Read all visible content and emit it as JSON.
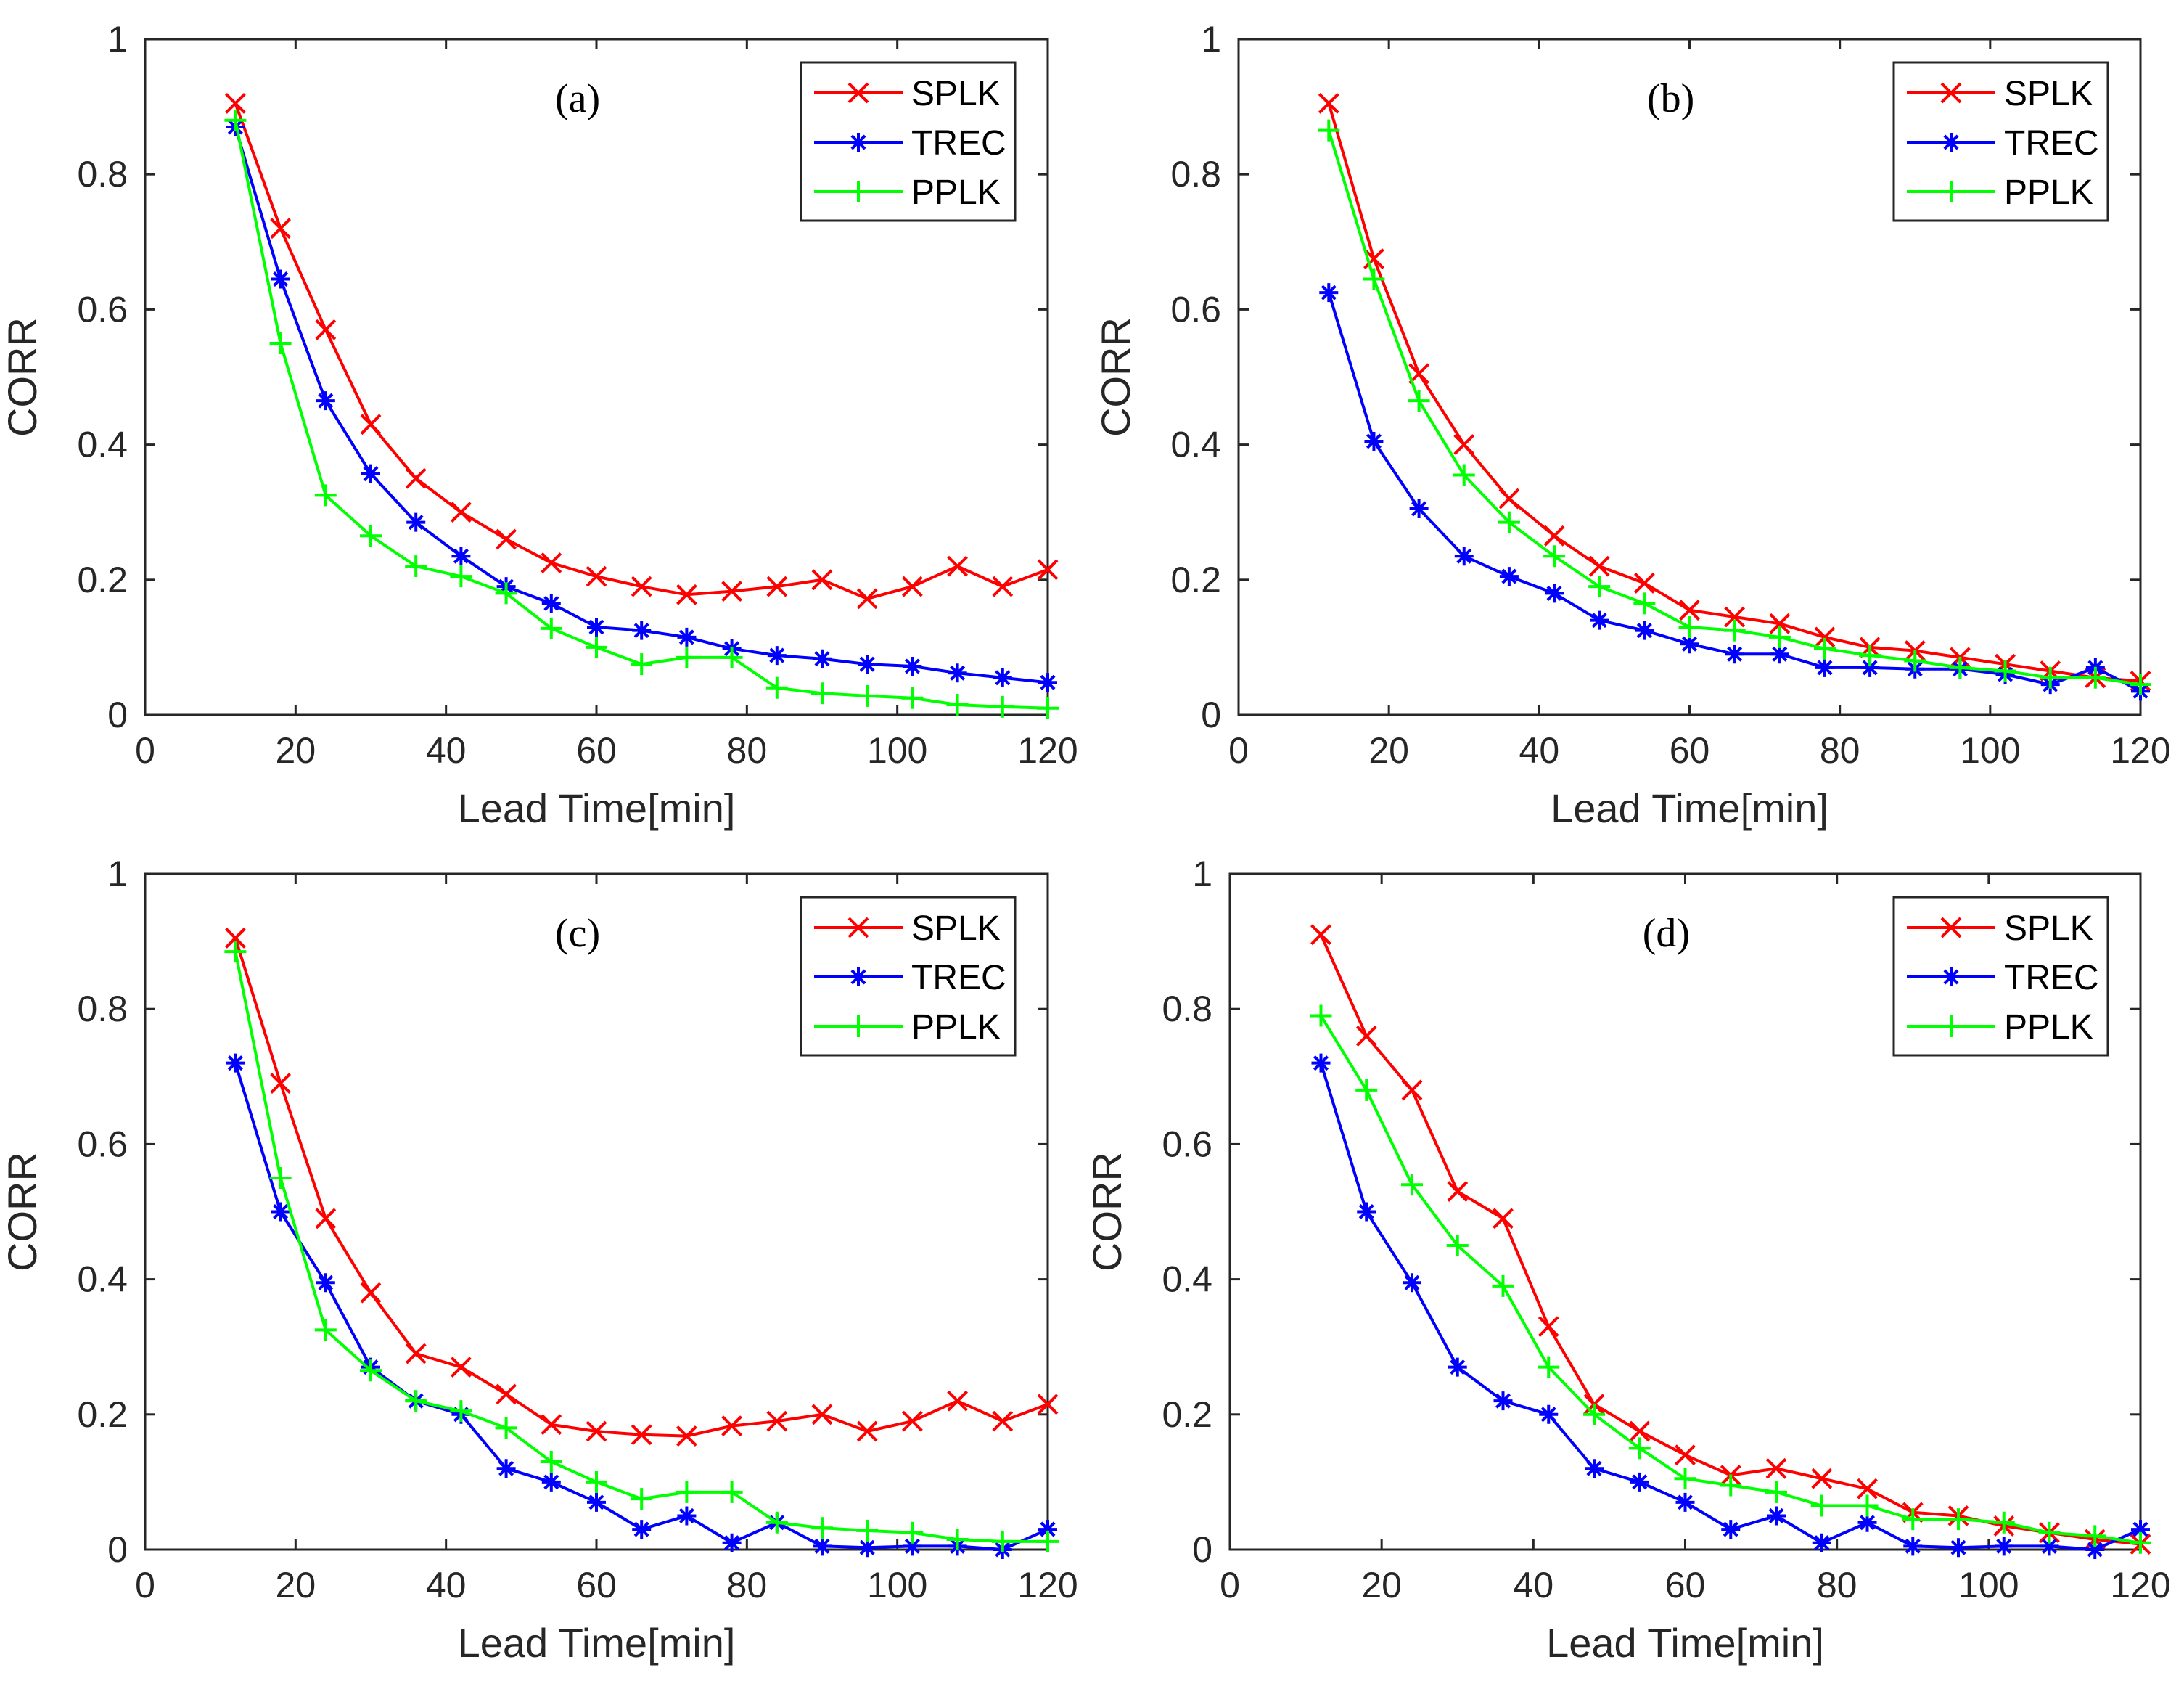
{
  "chart_data": [
    {
      "type": "line",
      "panel_label": "(a)",
      "xlabel": "Lead Time[min]",
      "ylabel": "CORR",
      "xlim": [
        0,
        120
      ],
      "ylim": [
        0,
        1
      ],
      "xticks": [
        "0",
        "20",
        "40",
        "60",
        "80",
        "100",
        "120"
      ],
      "yticks": [
        "0",
        "0.2",
        "0.4",
        "0.6",
        "0.8",
        "1"
      ],
      "legend_position": "top-right",
      "x": [
        12,
        18,
        24,
        30,
        36,
        42,
        48,
        54,
        60,
        66,
        72,
        78,
        84,
        90,
        96,
        102,
        108,
        114,
        120
      ],
      "series": [
        {
          "name": "SPLK",
          "color": "#ff0000",
          "marker": "x",
          "values": [
            0.905,
            0.72,
            0.57,
            0.43,
            0.35,
            0.3,
            0.26,
            0.225,
            0.205,
            0.19,
            0.178,
            0.183,
            0.19,
            0.2,
            0.172,
            0.19,
            0.22,
            0.19,
            0.215
          ]
        },
        {
          "name": "TREC",
          "color": "#0000ff",
          "marker": "*",
          "values": [
            0.87,
            0.645,
            0.465,
            0.357,
            0.285,
            0.235,
            0.19,
            0.165,
            0.13,
            0.125,
            0.115,
            0.098,
            0.088,
            0.083,
            0.075,
            0.072,
            0.062,
            0.055,
            0.048
          ]
        },
        {
          "name": "PPLK",
          "color": "#00ff00",
          "marker": "+",
          "values": [
            0.88,
            0.55,
            0.325,
            0.265,
            0.22,
            0.205,
            0.18,
            0.128,
            0.1,
            0.075,
            0.085,
            0.085,
            0.04,
            0.032,
            0.028,
            0.025,
            0.015,
            0.012,
            0.01
          ]
        }
      ]
    },
    {
      "type": "line",
      "panel_label": "(b)",
      "xlabel": "Lead Time[min]",
      "ylabel": "CORR",
      "xlim": [
        0,
        120
      ],
      "ylim": [
        0,
        1
      ],
      "xticks": [
        "0",
        "20",
        "40",
        "60",
        "80",
        "100",
        "120"
      ],
      "yticks": [
        "0",
        "0.2",
        "0.4",
        "0.6",
        "0.8",
        "1"
      ],
      "legend_position": "top-right",
      "x": [
        12,
        18,
        24,
        30,
        36,
        42,
        48,
        54,
        60,
        66,
        72,
        78,
        84,
        90,
        96,
        102,
        108,
        114,
        120
      ],
      "series": [
        {
          "name": "SPLK",
          "color": "#ff0000",
          "marker": "x",
          "values": [
            0.905,
            0.675,
            0.505,
            0.4,
            0.32,
            0.265,
            0.22,
            0.195,
            0.155,
            0.145,
            0.135,
            0.115,
            0.1,
            0.095,
            0.085,
            0.075,
            0.065,
            0.055,
            0.05
          ]
        },
        {
          "name": "TREC",
          "color": "#0000ff",
          "marker": "*",
          "values": [
            0.625,
            0.405,
            0.305,
            0.235,
            0.205,
            0.18,
            0.14,
            0.125,
            0.105,
            0.09,
            0.09,
            0.07,
            0.07,
            0.068,
            0.068,
            0.06,
            0.045,
            0.07,
            0.035
          ]
        },
        {
          "name": "PPLK",
          "color": "#00ff00",
          "marker": "+",
          "values": [
            0.865,
            0.645,
            0.465,
            0.355,
            0.285,
            0.235,
            0.19,
            0.165,
            0.13,
            0.125,
            0.115,
            0.098,
            0.088,
            0.08,
            0.07,
            0.065,
            0.055,
            0.055,
            0.045
          ]
        }
      ]
    },
    {
      "type": "line",
      "panel_label": "(c)",
      "xlabel": "Lead Time[min]",
      "ylabel": "CORR",
      "xlim": [
        0,
        120
      ],
      "ylim": [
        0,
        1
      ],
      "xticks": [
        "0",
        "20",
        "40",
        "60",
        "80",
        "100",
        "120"
      ],
      "yticks": [
        "0",
        "0.2",
        "0.4",
        "0.6",
        "0.8",
        "1"
      ],
      "legend_position": "top-right",
      "x": [
        12,
        18,
        24,
        30,
        36,
        42,
        48,
        54,
        60,
        66,
        72,
        78,
        84,
        90,
        96,
        102,
        108,
        114,
        120
      ],
      "series": [
        {
          "name": "SPLK",
          "color": "#ff0000",
          "marker": "x",
          "values": [
            0.905,
            0.69,
            0.49,
            0.38,
            0.29,
            0.27,
            0.23,
            0.185,
            0.175,
            0.17,
            0.168,
            0.183,
            0.19,
            0.2,
            0.175,
            0.19,
            0.22,
            0.19,
            0.215
          ]
        },
        {
          "name": "TREC",
          "color": "#0000ff",
          "marker": "*",
          "values": [
            0.72,
            0.5,
            0.395,
            0.27,
            0.22,
            0.2,
            0.12,
            0.1,
            0.07,
            0.03,
            0.05,
            0.01,
            0.04,
            0.005,
            0.003,
            0.005,
            0.005,
            0.0,
            0.03
          ]
        },
        {
          "name": "PPLK",
          "color": "#00ff00",
          "marker": "+",
          "values": [
            0.885,
            0.55,
            0.325,
            0.265,
            0.22,
            0.205,
            0.18,
            0.13,
            0.1,
            0.075,
            0.085,
            0.085,
            0.04,
            0.032,
            0.028,
            0.025,
            0.015,
            0.012,
            0.012
          ]
        }
      ]
    },
    {
      "type": "line",
      "panel_label": "(d)",
      "xlabel": "Lead Time[min]",
      "ylabel": "CORR",
      "xlim": [
        0,
        120
      ],
      "ylim": [
        0,
        1
      ],
      "xticks": [
        "0",
        "20",
        "40",
        "60",
        "80",
        "100",
        "120"
      ],
      "yticks": [
        "0",
        "0.2",
        "0.4",
        "0.6",
        "0.8",
        "1"
      ],
      "legend_position": "top-right",
      "x": [
        12,
        18,
        24,
        30,
        36,
        42,
        48,
        54,
        60,
        66,
        72,
        78,
        84,
        90,
        96,
        102,
        108,
        114,
        120
      ],
      "series": [
        {
          "name": "SPLK",
          "color": "#ff0000",
          "marker": "x",
          "values": [
            0.91,
            0.76,
            0.68,
            0.53,
            0.49,
            0.33,
            0.215,
            0.175,
            0.14,
            0.11,
            0.12,
            0.105,
            0.09,
            0.055,
            0.05,
            0.035,
            0.025,
            0.015,
            0.008
          ]
        },
        {
          "name": "TREC",
          "color": "#0000ff",
          "marker": "*",
          "values": [
            0.72,
            0.5,
            0.395,
            0.27,
            0.22,
            0.2,
            0.12,
            0.1,
            0.07,
            0.03,
            0.05,
            0.01,
            0.04,
            0.005,
            0.003,
            0.005,
            0.005,
            0.0,
            0.03
          ]
        },
        {
          "name": "PPLK",
          "color": "#00ff00",
          "marker": "+",
          "values": [
            0.79,
            0.68,
            0.54,
            0.45,
            0.39,
            0.27,
            0.2,
            0.15,
            0.105,
            0.095,
            0.085,
            0.065,
            0.065,
            0.045,
            0.045,
            0.04,
            0.025,
            0.02,
            0.01
          ]
        }
      ]
    }
  ]
}
